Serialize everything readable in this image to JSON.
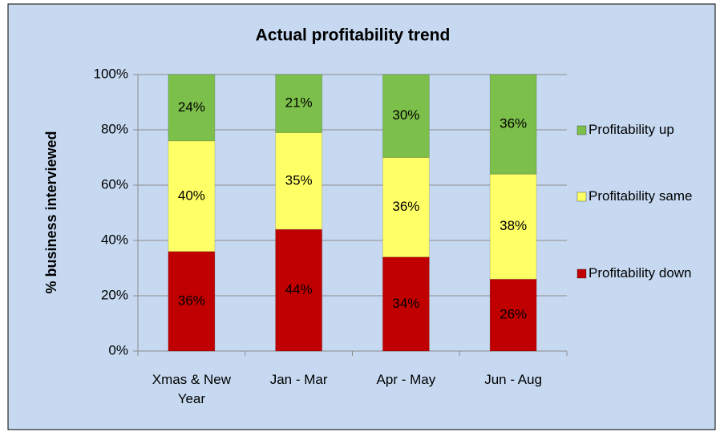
{
  "chart_data": {
    "type": "bar",
    "stacked": true,
    "title": "Actual profitability trend",
    "y_label": "% business interviewed",
    "categories": [
      "Xmas & New Year",
      "Jan - Mar",
      "Apr - May",
      "Jun - Aug"
    ],
    "series": [
      {
        "name": "Profitability down",
        "color": "#c00000",
        "values": [
          36,
          44,
          34,
          26
        ],
        "value_labels": [
          "36%",
          "44%",
          "34%",
          "26%"
        ]
      },
      {
        "name": "Profitability same",
        "color": "#ffff66",
        "values": [
          40,
          35,
          36,
          38
        ],
        "value_labels": [
          "40%",
          "35%",
          "36%",
          "38%"
        ]
      },
      {
        "name": "Profitability up",
        "color": "#7cbf4a",
        "values": [
          24,
          21,
          30,
          36
        ],
        "value_labels": [
          "24%",
          "21%",
          "30%",
          "36%"
        ]
      }
    ],
    "ylim": [
      0,
      100
    ],
    "yticks": [
      {
        "value": 0,
        "label": "0%"
      },
      {
        "value": 20,
        "label": "20%"
      },
      {
        "value": 40,
        "label": "40%"
      },
      {
        "value": 60,
        "label": "60%"
      },
      {
        "value": 80,
        "label": "80%"
      },
      {
        "value": 100,
        "label": "100%"
      }
    ],
    "grid": true,
    "legend": "right"
  }
}
